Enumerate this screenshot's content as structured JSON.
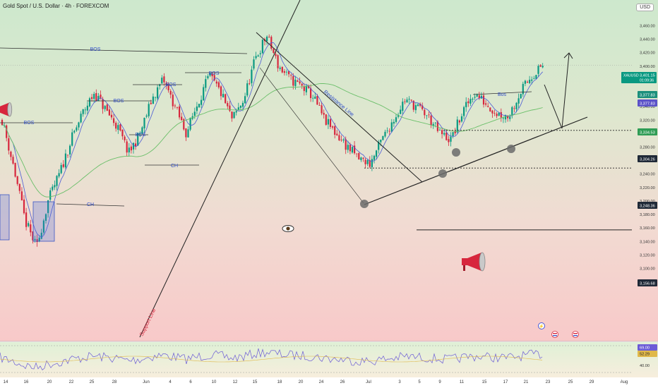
{
  "header": {
    "title": "Gold Spot / U.S. Dollar · 4h · FOREXCOM",
    "currency": "USD"
  },
  "chart_data": {
    "type": "candlestick",
    "symbol": "XAUUSD",
    "ylim": [
      3090,
      3480
    ],
    "y_ticks": [
      3100,
      3120,
      3140,
      3160,
      3180,
      3200,
      3220,
      3240,
      3260,
      3280,
      3300,
      3320,
      3340,
      3360,
      3380,
      3400,
      3420,
      3440,
      3460
    ],
    "x_ticks": [
      "14",
      "16",
      "20",
      "22",
      "25",
      "28",
      "Jun",
      "4",
      "6",
      "10",
      "12",
      "15",
      "18",
      "20",
      "24",
      "26",
      "Jul",
      "3",
      "5",
      "9",
      "11",
      "15",
      "17",
      "21",
      "23",
      "25",
      "29",
      "Aug"
    ],
    "price_tags": [
      {
        "label": "XAUUSD",
        "value": "3,401.15",
        "sub": "01:09:36",
        "color": "#089981"
      },
      {
        "value": "3,377.83",
        "color": "#1b8f7c"
      },
      {
        "value": "3,377.83",
        "color": "#5b52c8"
      },
      {
        "value": "3,334.53",
        "color": "#2e9c55"
      },
      {
        "value": "3,304.26",
        "color": "#1f2937"
      },
      {
        "value": "3,248.36",
        "color": "#1f2937"
      },
      {
        "value": "3,156.68",
        "color": "#1f2937"
      }
    ],
    "levels": [
      3304.26,
      3248.36,
      3156.68
    ],
    "close_path": [
      3320,
      3250,
      3170,
      3130,
      3200,
      3240,
      3290,
      3330,
      3360,
      3335,
      3310,
      3270,
      3300,
      3350,
      3380,
      3340,
      3300,
      3345,
      3385,
      3360,
      3320,
      3350,
      3410,
      3445,
      3400,
      3380,
      3370,
      3355,
      3320,
      3300,
      3280,
      3262,
      3255,
      3290,
      3320,
      3350,
      3340,
      3325,
      3300,
      3290,
      3330,
      3360,
      3345,
      3330,
      3325,
      3360,
      3385,
      3401
    ],
    "annotations": [
      "BOS",
      "BOS",
      "BOS",
      "BOS",
      "BOS",
      "BOS",
      "CH",
      "CH",
      "Bos",
      "Resistance Line",
      "Support Line"
    ],
    "rsi": {
      "values": [
        "69.00",
        "52.29"
      ],
      "ticks": [
        "40.00"
      ]
    }
  }
}
